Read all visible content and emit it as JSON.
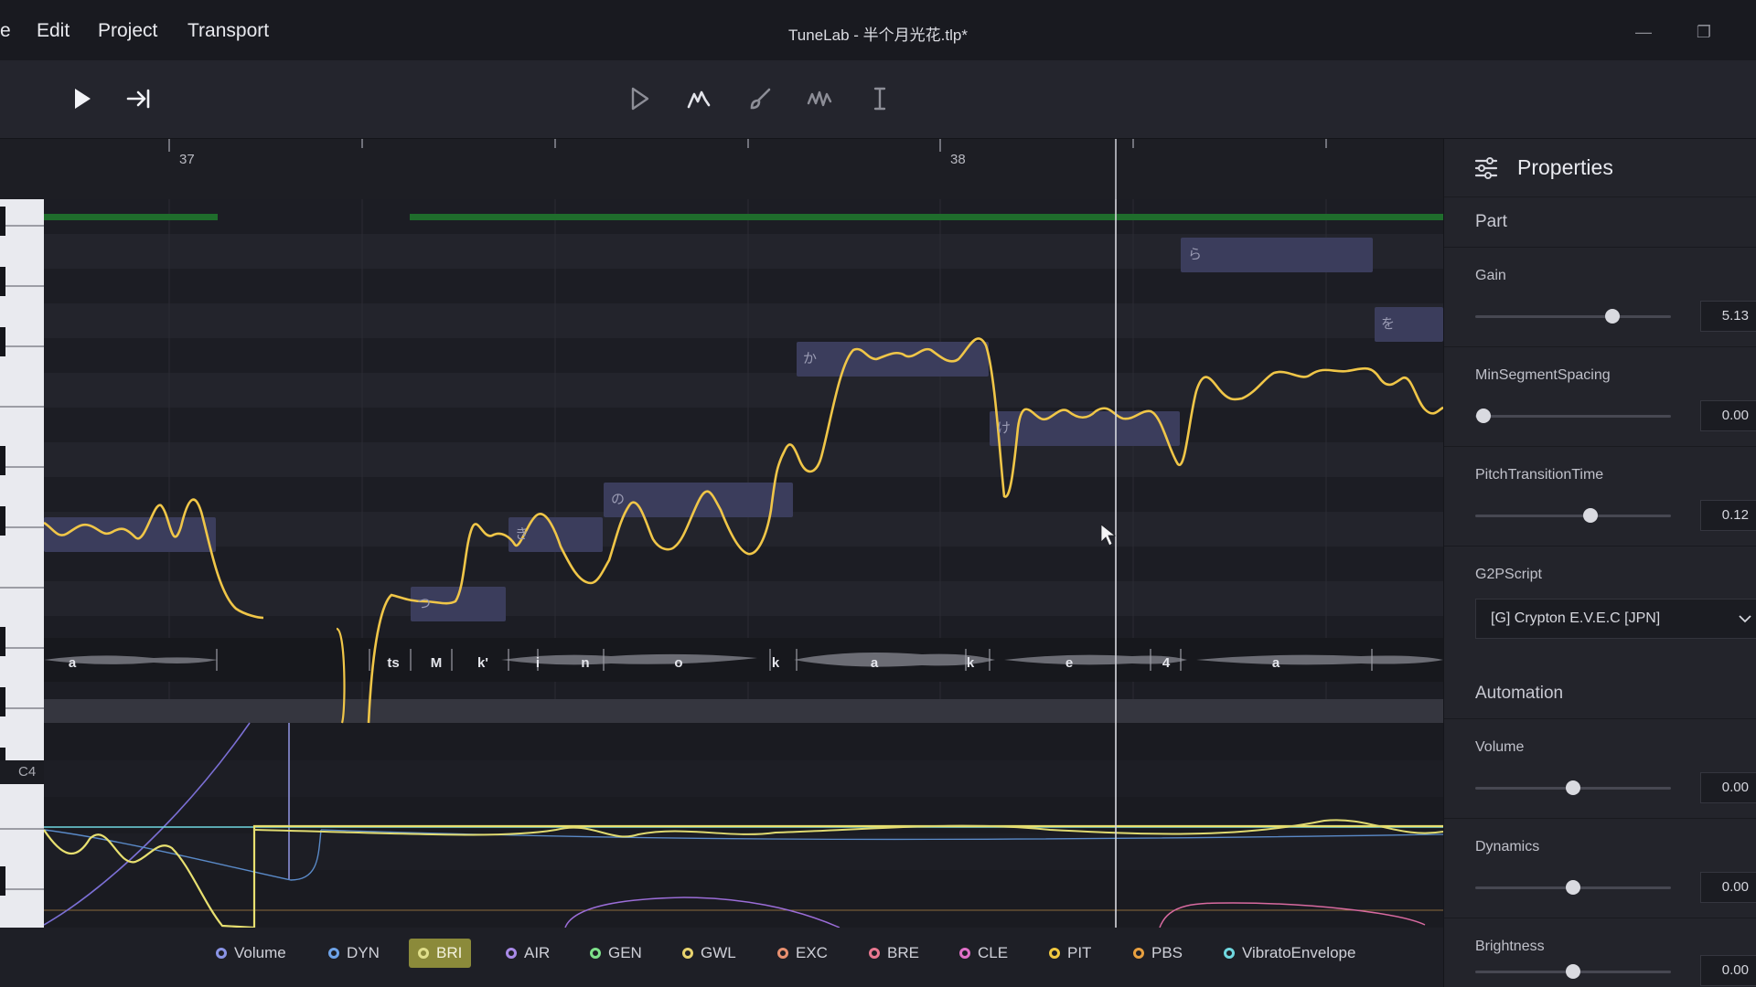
{
  "menu": {
    "file_partial": "e",
    "edit": "Edit",
    "project": "Project",
    "transport": "Transport"
  },
  "window": {
    "title": "TuneLab - 半个月光花.tlp*",
    "minimize": "—",
    "restore": "❐"
  },
  "toolbar": {
    "icons": [
      "play-icon",
      "go-to-end-icon",
      "select-pointer-icon",
      "pitch-draw-icon",
      "brush-icon",
      "vibrato-icon",
      "text-cursor-icon"
    ]
  },
  "ruler": {
    "bar_37": "37",
    "bar_38": "38"
  },
  "piano": {
    "c4_label": "C4"
  },
  "notes": [
    {
      "lyric": ""
    },
    {
      "lyric": "つ"
    },
    {
      "lyric": "き"
    },
    {
      "lyric": "の"
    },
    {
      "lyric": "か"
    },
    {
      "lyric": "け"
    },
    {
      "lyric": "ら"
    },
    {
      "lyric": "を"
    }
  ],
  "phonemes": [
    "a",
    "ts",
    "M",
    "k'",
    "i",
    "n",
    "o",
    "k",
    "a",
    "k",
    "e",
    "4",
    "a"
  ],
  "param_tabs": [
    {
      "label": "Volume",
      "color": "#8a94e6"
    },
    {
      "label": "DYN",
      "color": "#6ea3e8"
    },
    {
      "label": "BRI",
      "color": "#e0df8a"
    },
    {
      "label": "AIR",
      "color": "#a98ae8"
    },
    {
      "label": "GEN",
      "color": "#7ee08a"
    },
    {
      "label": "GWL",
      "color": "#e8d36e"
    },
    {
      "label": "EXC",
      "color": "#e89070"
    },
    {
      "label": "BRE",
      "color": "#e87890"
    },
    {
      "label": "CLE",
      "color": "#e070c8"
    },
    {
      "label": "PIT",
      "color": "#f0c840"
    },
    {
      "label": "PBS",
      "color": "#e8a040"
    },
    {
      "label": "VibratoEnvelope",
      "color": "#70d8e0"
    }
  ],
  "properties": {
    "title": "Properties",
    "part_section": "Part",
    "automation_section": "Automation",
    "gain": {
      "label": "Gain",
      "value": "5.13",
      "fraction": 0.7
    },
    "min_segment_spacing": {
      "label": "MinSegmentSpacing",
      "value": "0.00",
      "fraction": 0.04
    },
    "pitch_transition_time": {
      "label": "PitchTransitionTime",
      "value": "0.12",
      "fraction": 0.59
    },
    "g2p_script": {
      "label": "G2PScript",
      "value": "[G] Crypton E.V.E.C [JPN]"
    },
    "volume": {
      "label": "Volume",
      "value": "0.00",
      "fraction": 0.5
    },
    "dynamics": {
      "label": "Dynamics",
      "value": "0.00",
      "fraction": 0.5
    },
    "brightness": {
      "label": "Brightness",
      "value": "0.00",
      "fraction": 0.5
    }
  }
}
